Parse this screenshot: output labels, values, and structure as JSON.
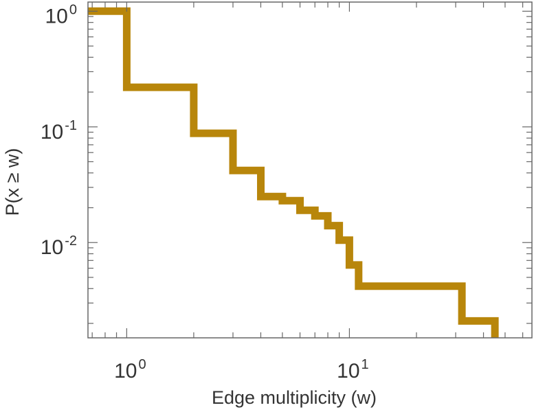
{
  "chart_data": {
    "type": "line",
    "step": true,
    "xlabel": "Edge multiplicity (w)",
    "ylabel": "P(x ≥ w)",
    "xscale": "log",
    "yscale": "log",
    "xlim": [
      0.67,
      66
    ],
    "ylim": [
      0.0015,
      1.2
    ],
    "grid": false,
    "legend": "none",
    "series_color": "#b8860b",
    "x_ticks": [
      {
        "base": "10",
        "exp": "0",
        "value": 1
      },
      {
        "base": "10",
        "exp": "1",
        "value": 10
      }
    ],
    "y_ticks": [
      {
        "base": "10",
        "exp": "0",
        "value": 1
      },
      {
        "base": "10",
        "exp": "-1",
        "value": 0.1
      },
      {
        "base": "10",
        "exp": "-2",
        "value": 0.01
      }
    ],
    "series": [
      {
        "values_x": [
          0.67,
          1,
          2,
          3,
          4,
          5,
          6,
          7,
          8,
          9,
          10,
          11,
          32,
          45
        ],
        "values_y": [
          1.0,
          0.22,
          0.088,
          0.042,
          0.025,
          0.023,
          0.019,
          0.017,
          0.014,
          0.0105,
          0.0064,
          0.0042,
          0.0021,
          0.0015
        ]
      }
    ]
  }
}
